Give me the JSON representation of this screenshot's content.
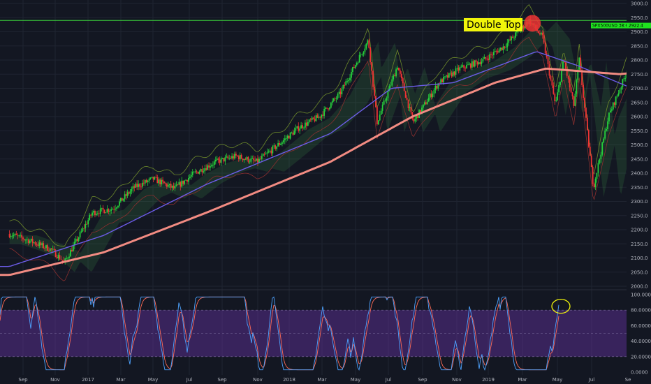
{
  "chart_data": [
    {
      "type": "candlestick",
      "symbol_tag": "SPX500USD",
      "last_price_label": "2922.4",
      "countdown_label": "38:64h",
      "ylim": [
        2000,
        3000
      ],
      "yticks": [
        "3000.0",
        "2950.0",
        "2900.0",
        "2850.0",
        "2800.0",
        "2750.0",
        "2700.0",
        "2650.0",
        "2600.0",
        "2550.0",
        "2500.0",
        "2450.0",
        "2400.0",
        "2350.0",
        "2300.0",
        "2250.0",
        "2200.0",
        "2150.0",
        "2100.0",
        "2050.0",
        "2000.0"
      ],
      "xticks": [
        "Sep",
        "Nov",
        "2017",
        "Mar",
        "May",
        "Jul",
        "Sep",
        "Nov",
        "2018",
        "Mar",
        "May",
        "Jul",
        "Sep",
        "Nov",
        "2019",
        "Mar",
        "May",
        "Jul",
        "Se"
      ],
      "resistance_level": 2940,
      "annotation": {
        "label": "Double Top"
      },
      "price_path": [
        {
          "date": "2016-08-15",
          "value": 2185
        },
        {
          "date": "2016-09-15",
          "value": 2160
        },
        {
          "date": "2016-10-15",
          "value": 2130
        },
        {
          "date": "2016-11-04",
          "value": 2085
        },
        {
          "date": "2016-12-15",
          "value": 2260
        },
        {
          "date": "2017-01-15",
          "value": 2275
        },
        {
          "date": "2017-02-15",
          "value": 2350
        },
        {
          "date": "2017-03-15",
          "value": 2380
        },
        {
          "date": "2017-04-15",
          "value": 2345
        },
        {
          "date": "2017-05-15",
          "value": 2400
        },
        {
          "date": "2017-06-15",
          "value": 2440
        },
        {
          "date": "2017-07-15",
          "value": 2460
        },
        {
          "date": "2017-08-15",
          "value": 2440
        },
        {
          "date": "2017-09-15",
          "value": 2500
        },
        {
          "date": "2017-10-15",
          "value": 2560
        },
        {
          "date": "2017-11-15",
          "value": 2600
        },
        {
          "date": "2017-12-15",
          "value": 2680
        },
        {
          "date": "2018-01-26",
          "value": 2870
        },
        {
          "date": "2018-02-08",
          "value": 2580
        },
        {
          "date": "2018-03-10",
          "value": 2780
        },
        {
          "date": "2018-04-02",
          "value": 2580
        },
        {
          "date": "2018-05-10",
          "value": 2720
        },
        {
          "date": "2018-06-10",
          "value": 2770
        },
        {
          "date": "2018-07-15",
          "value": 2800
        },
        {
          "date": "2018-08-15",
          "value": 2850
        },
        {
          "date": "2018-09-20",
          "value": 2940
        },
        {
          "date": "2018-10-10",
          "value": 2880
        },
        {
          "date": "2018-10-29",
          "value": 2640
        },
        {
          "date": "2018-11-10",
          "value": 2800
        },
        {
          "date": "2018-11-25",
          "value": 2640
        },
        {
          "date": "2018-12-03",
          "value": 2800
        },
        {
          "date": "2018-12-24",
          "value": 2350
        },
        {
          "date": "2019-01-15",
          "value": 2600
        },
        {
          "date": "2019-02-15",
          "value": 2780
        },
        {
          "date": "2019-03-15",
          "value": 2820
        },
        {
          "date": "2019-04-10",
          "value": 2890
        },
        {
          "date": "2019-04-30",
          "value": 2945
        },
        {
          "date": "2019-05-06",
          "value": 2922
        }
      ],
      "ma_200": [
        {
          "date": "2016-08-15",
          "value": 2040
        },
        {
          "date": "2017-01-01",
          "value": 2120
        },
        {
          "date": "2017-06-01",
          "value": 2260
        },
        {
          "date": "2017-12-01",
          "value": 2440
        },
        {
          "date": "2018-04-01",
          "value": 2600
        },
        {
          "date": "2018-08-01",
          "value": 2720
        },
        {
          "date": "2018-10-15",
          "value": 2770
        },
        {
          "date": "2019-02-01",
          "value": 2750
        },
        {
          "date": "2019-05-15",
          "value": 2775
        }
      ],
      "ma_100": [
        {
          "date": "2016-08-15",
          "value": 2070
        },
        {
          "date": "2017-01-01",
          "value": 2180
        },
        {
          "date": "2017-06-01",
          "value": 2360
        },
        {
          "date": "2017-12-01",
          "value": 2540
        },
        {
          "date": "2018-03-01",
          "value": 2700
        },
        {
          "date": "2018-06-01",
          "value": 2720
        },
        {
          "date": "2018-10-01",
          "value": 2830
        },
        {
          "date": "2018-12-01",
          "value": 2780
        },
        {
          "date": "2019-03-01",
          "value": 2690
        },
        {
          "date": "2019-05-15",
          "value": 2730
        }
      ]
    },
    {
      "type": "line",
      "indicator": "stochastic",
      "ylim": [
        0,
        100
      ],
      "yticks": [
        "100.0000",
        "80.0000",
        "60.0000",
        "40.0000",
        "20.0000",
        "0.0000"
      ],
      "band": [
        20,
        80
      ]
    }
  ]
}
